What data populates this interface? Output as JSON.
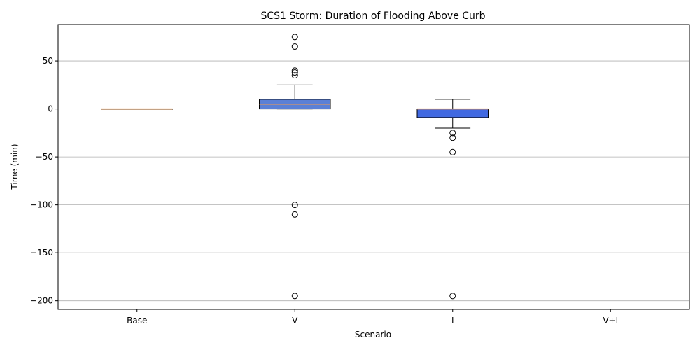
{
  "chart_data": {
    "type": "box",
    "title": "SCS1 Storm: Duration of Flooding Above Curb",
    "xlabel": "Scenario",
    "ylabel": "Time (min)",
    "categories": [
      "Base",
      "V",
      "I",
      "V+I"
    ],
    "ylim": [
      -209,
      88
    ],
    "yticks": [
      50,
      0,
      -50,
      -100,
      -150,
      -200
    ],
    "grid": "y",
    "boxes": [
      {
        "category": "Base",
        "min": 0,
        "q1": 0,
        "median": 0,
        "q3": 0,
        "max": 0,
        "outliers": []
      },
      {
        "category": "V",
        "min": 0,
        "q1": 0,
        "median": 5,
        "q3": 10,
        "max": 25,
        "outliers": [
          75,
          65,
          40,
          38,
          35,
          -100,
          -110,
          -195
        ]
      },
      {
        "category": "I",
        "min": -20,
        "q1": -9,
        "median": 0,
        "q3": 0,
        "max": 10,
        "outliers": [
          -25,
          -30,
          -45,
          -195
        ]
      },
      {
        "category": "V+I",
        "min": null,
        "q1": null,
        "median": null,
        "q3": null,
        "max": null,
        "outliers": []
      }
    ],
    "colors": {
      "box_fill_V": "#5b80d6",
      "box_fill_I": "#4169e1",
      "box_fill_Base": "#6a8ad4",
      "median": "#f39a4e",
      "edge": "#000000",
      "grid": "#b0b0b0"
    }
  }
}
